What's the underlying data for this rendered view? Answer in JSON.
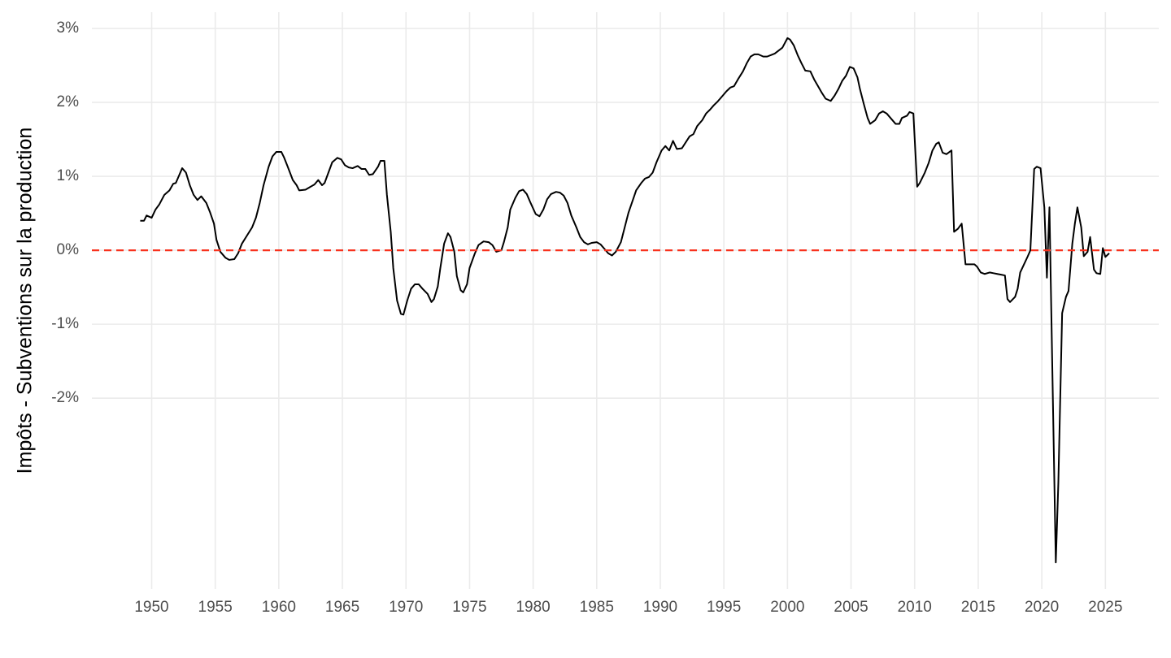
{
  "chart_data": {
    "type": "line",
    "y_label": "Impôts - Subventions sur la production",
    "x": [
      1949.1,
      1949.4,
      1949.6,
      1950.0,
      1950.3,
      1950.6,
      1951.0,
      1951.4,
      1951.7,
      1951.9,
      1952.2,
      1952.4,
      1952.7,
      1953.0,
      1953.3,
      1953.6,
      1953.9,
      1954.3,
      1954.6,
      1954.9,
      1955.1,
      1955.4,
      1955.8,
      1956.1,
      1956.5,
      1956.8,
      1957.1,
      1957.5,
      1957.9,
      1958.2,
      1958.5,
      1958.8,
      1959.2,
      1959.5,
      1959.8,
      1960.2,
      1960.4,
      1960.7,
      1961.1,
      1961.4,
      1961.6,
      1962.1,
      1962.4,
      1962.8,
      1963.1,
      1963.4,
      1963.6,
      1963.9,
      1964.2,
      1964.6,
      1964.9,
      1965.2,
      1965.5,
      1965.8,
      1966.2,
      1966.5,
      1966.8,
      1967.1,
      1967.4,
      1967.8,
      1968.0,
      1968.3,
      1968.5,
      1968.8,
      1969.0,
      1969.3,
      1969.6,
      1969.8,
      1970.1,
      1970.4,
      1970.7,
      1971.0,
      1971.3,
      1971.7,
      1972.0,
      1972.2,
      1972.5,
      1972.7,
      1973.0,
      1973.3,
      1973.5,
      1973.8,
      1974.0,
      1974.3,
      1974.5,
      1974.8,
      1975.0,
      1975.4,
      1975.7,
      1976.1,
      1976.5,
      1976.8,
      1977.1,
      1977.5,
      1977.7,
      1978.0,
      1978.2,
      1978.6,
      1978.9,
      1979.2,
      1979.5,
      1979.8,
      1980.2,
      1980.5,
      1980.8,
      1981.1,
      1981.4,
      1981.8,
      1982.1,
      1982.4,
      1982.7,
      1983.0,
      1983.4,
      1983.7,
      1984.0,
      1984.3,
      1984.6,
      1985.0,
      1985.3,
      1985.6,
      1985.9,
      1986.2,
      1986.5,
      1986.9,
      1987.2,
      1987.5,
      1987.8,
      1988.1,
      1988.5,
      1988.8,
      1989.1,
      1989.4,
      1989.7,
      1990.1,
      1990.4,
      1990.7,
      1991.0,
      1991.3,
      1991.7,
      1992.0,
      1992.3,
      1992.6,
      1992.9,
      1993.3,
      1993.6,
      1993.9,
      1994.2,
      1994.5,
      1994.9,
      1995.2,
      1995.5,
      1995.8,
      1996.1,
      1996.5,
      1996.8,
      1997.1,
      1997.4,
      1997.7,
      1998.1,
      1998.4,
      1998.7,
      1999.0,
      1999.3,
      1999.6,
      2000.0,
      2000.2,
      2000.5,
      2000.8,
      2001.1,
      2001.4,
      2001.8,
      2002.1,
      2002.4,
      2002.7,
      2003.0,
      2003.4,
      2003.7,
      2004.0,
      2004.3,
      2004.6,
      2004.9,
      2005.2,
      2005.5,
      2005.7,
      2006.0,
      2006.3,
      2006.5,
      2006.9,
      2007.2,
      2007.5,
      2007.8,
      2008.1,
      2008.5,
      2008.8,
      2009.0,
      2009.4,
      2009.6,
      2009.9,
      2010.2,
      2010.4,
      2010.8,
      2011.1,
      2011.4,
      2011.7,
      2011.9,
      2012.2,
      2012.5,
      2012.9,
      2013.1,
      2013.4,
      2013.7,
      2014.0,
      2014.3,
      2014.7,
      2014.9,
      2015.2,
      2015.5,
      2015.9,
      2016.2,
      2016.5,
      2016.8,
      2017.1,
      2017.3,
      2017.5,
      2017.9,
      2018.1,
      2018.3,
      2018.6,
      2018.9,
      2019.1,
      2019.4,
      2019.6,
      2019.9,
      2020.2,
      2020.4,
      2020.6,
      2021.1,
      2021.3,
      2021.6,
      2021.9,
      2022.1,
      2022.4,
      2022.6,
      2022.8,
      2023.1,
      2023.3,
      2023.6,
      2023.8,
      2024.1,
      2024.3,
      2024.6,
      2024.8,
      2025.0,
      2025.3
    ],
    "values": [
      0.4,
      0.4,
      0.47,
      0.44,
      0.55,
      0.62,
      0.75,
      0.81,
      0.9,
      0.91,
      1.03,
      1.11,
      1.05,
      0.88,
      0.75,
      0.68,
      0.73,
      0.64,
      0.51,
      0.36,
      0.14,
      -0.02,
      -0.1,
      -0.13,
      -0.12,
      -0.04,
      0.09,
      0.2,
      0.31,
      0.44,
      0.64,
      0.88,
      1.13,
      1.27,
      1.33,
      1.33,
      1.26,
      1.13,
      0.95,
      0.88,
      0.81,
      0.82,
      0.85,
      0.89,
      0.95,
      0.88,
      0.91,
      1.05,
      1.19,
      1.25,
      1.23,
      1.15,
      1.12,
      1.11,
      1.14,
      1.1,
      1.1,
      1.02,
      1.03,
      1.13,
      1.21,
      1.21,
      0.75,
      0.25,
      -0.24,
      -0.68,
      -0.86,
      -0.87,
      -0.68,
      -0.52,
      -0.46,
      -0.46,
      -0.52,
      -0.59,
      -0.7,
      -0.66,
      -0.49,
      -0.24,
      0.09,
      0.23,
      0.18,
      -0.02,
      -0.35,
      -0.54,
      -0.57,
      -0.46,
      -0.24,
      -0.05,
      0.07,
      0.12,
      0.11,
      0.07,
      -0.02,
      0.0,
      0.11,
      0.31,
      0.55,
      0.71,
      0.8,
      0.82,
      0.76,
      0.64,
      0.49,
      0.46,
      0.55,
      0.69,
      0.76,
      0.79,
      0.78,
      0.74,
      0.64,
      0.47,
      0.31,
      0.18,
      0.11,
      0.08,
      0.1,
      0.11,
      0.08,
      0.02,
      -0.04,
      -0.07,
      -0.02,
      0.11,
      0.31,
      0.51,
      0.66,
      0.81,
      0.91,
      0.97,
      0.99,
      1.05,
      1.19,
      1.35,
      1.41,
      1.35,
      1.48,
      1.37,
      1.38,
      1.46,
      1.54,
      1.57,
      1.68,
      1.76,
      1.85,
      1.9,
      1.96,
      2.01,
      2.09,
      2.15,
      2.2,
      2.22,
      2.31,
      2.42,
      2.53,
      2.62,
      2.65,
      2.65,
      2.62,
      2.62,
      2.64,
      2.66,
      2.7,
      2.74,
      2.87,
      2.85,
      2.77,
      2.64,
      2.53,
      2.43,
      2.42,
      2.31,
      2.22,
      2.13,
      2.05,
      2.02,
      2.09,
      2.18,
      2.29,
      2.36,
      2.48,
      2.46,
      2.34,
      2.18,
      1.98,
      1.79,
      1.71,
      1.76,
      1.85,
      1.88,
      1.85,
      1.79,
      1.71,
      1.71,
      1.79,
      1.82,
      1.87,
      1.85,
      0.86,
      0.91,
      1.05,
      1.18,
      1.35,
      1.44,
      1.46,
      1.32,
      1.3,
      1.35,
      0.25,
      0.29,
      0.36,
      -0.19,
      -0.19,
      -0.19,
      -0.22,
      -0.3,
      -0.32,
      -0.3,
      -0.31,
      -0.32,
      -0.33,
      -0.34,
      -0.66,
      -0.7,
      -0.63,
      -0.52,
      -0.3,
      -0.19,
      -0.08,
      0.0,
      1.1,
      1.13,
      1.11,
      0.58,
      -0.37,
      0.58,
      -4.22,
      -3.15,
      -0.85,
      -0.63,
      -0.55,
      0.09,
      0.36,
      0.58,
      0.31,
      -0.08,
      -0.02,
      0.18,
      -0.26,
      -0.31,
      -0.32,
      0.03,
      -0.09,
      -0.04
    ],
    "color": "#000000",
    "hline": 0,
    "hline_color": "#f8321e",
    "xlim": [
      1945.3,
      2029.2
    ],
    "xticks": [
      1950,
      1955,
      1960,
      1965,
      1970,
      1975,
      1980,
      1985,
      1990,
      1995,
      2000,
      2005,
      2010,
      2015,
      2020,
      2025
    ],
    "ylim": [
      -4.58,
      3.22
    ],
    "yticks": [
      {
        "value": -2,
        "label": "-2%"
      },
      {
        "value": -1,
        "label": "-1%"
      },
      {
        "value": 0,
        "label": "0%"
      },
      {
        "value": 1,
        "label": "1%"
      },
      {
        "value": 2,
        "label": "2%"
      },
      {
        "value": 3,
        "label": "3%"
      }
    ],
    "grid": true
  }
}
